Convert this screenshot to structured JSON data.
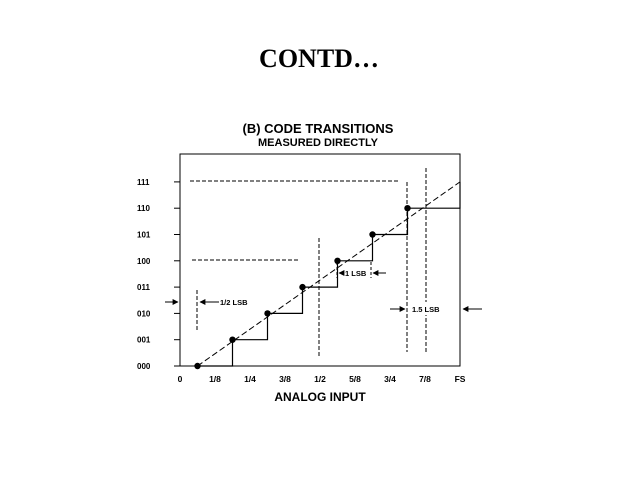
{
  "slide": {
    "title": "CONTD…"
  },
  "chart_data": {
    "type": "line",
    "title": "(B) CODE TRANSITIONS",
    "subtitle": "MEASURED DIRECTLY",
    "xlabel": "ANALOG INPUT",
    "ylabel": "",
    "x_ticks": [
      "0",
      "1/8",
      "1/4",
      "3/8",
      "1/2",
      "5/8",
      "3/4",
      "7/8",
      "FS"
    ],
    "y_ticks": [
      "000",
      "001",
      "010",
      "011",
      "100",
      "101",
      "110",
      "111"
    ],
    "xlim": [
      0,
      1
    ],
    "ylim": [
      0,
      7
    ],
    "series": [
      {
        "style": "solid staircase",
        "x": [
          0.0625,
          0.1875,
          0.3125,
          0.4375,
          0.5625,
          0.6875,
          0.8125,
          1.0
        ],
        "y": [
          0,
          1,
          2,
          3,
          4,
          5,
          6,
          7
        ]
      },
      {
        "style": "dashed ideal line",
        "x": [
          0.0625,
          1.0
        ],
        "y": [
          0,
          7
        ]
      }
    ],
    "transition_points": {
      "x": [
        0.0625,
        0.1875,
        0.3125,
        0.4375,
        0.5625,
        0.6875,
        0.8125
      ],
      "y": [
        0,
        1,
        2,
        3,
        4,
        5,
        6
      ]
    },
    "annotations": [
      "1/2 LSB",
      "1 LSB",
      "1.5 LSB"
    ],
    "grid": false
  }
}
